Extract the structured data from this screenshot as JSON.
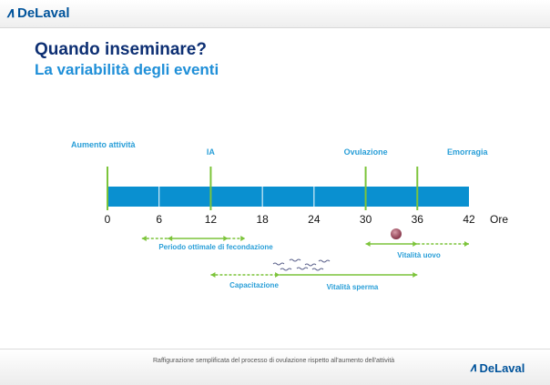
{
  "brand": {
    "name": "DeLaval",
    "color": "#00539b"
  },
  "title": "Quando inseminare?",
  "subtitle": "La variabilità degli eventi",
  "timeline": {
    "ticks": [
      0,
      6,
      12,
      18,
      24,
      30,
      36,
      42
    ],
    "unit": "Ore",
    "bar_color": "#0a90d0",
    "events": [
      {
        "label": "Aumento attività",
        "hour": 0
      },
      {
        "label": "IA",
        "hour": 12
      },
      {
        "label": "Ovulazione",
        "hour": 30
      },
      {
        "label": "Emorragia",
        "hour": 36
      }
    ],
    "periods": [
      {
        "label": "Periodo ottimale di fecondazione",
        "start": 4,
        "end": 16,
        "core_start": 7,
        "core_end": 14
      },
      {
        "label": "Vitalità uovo",
        "start": 30,
        "end": 42,
        "core_start": 30,
        "core_end": 36
      },
      {
        "label": "Capacitazione",
        "start": 12,
        "end": 20
      },
      {
        "label": "Vitalità sperma",
        "start": 20,
        "end": 36
      }
    ],
    "accent_color": "#7cc43a"
  },
  "footer": {
    "text": "Raffigurazione semplificata del processo di ovulazione rispetto all'aumento dell'attività"
  }
}
